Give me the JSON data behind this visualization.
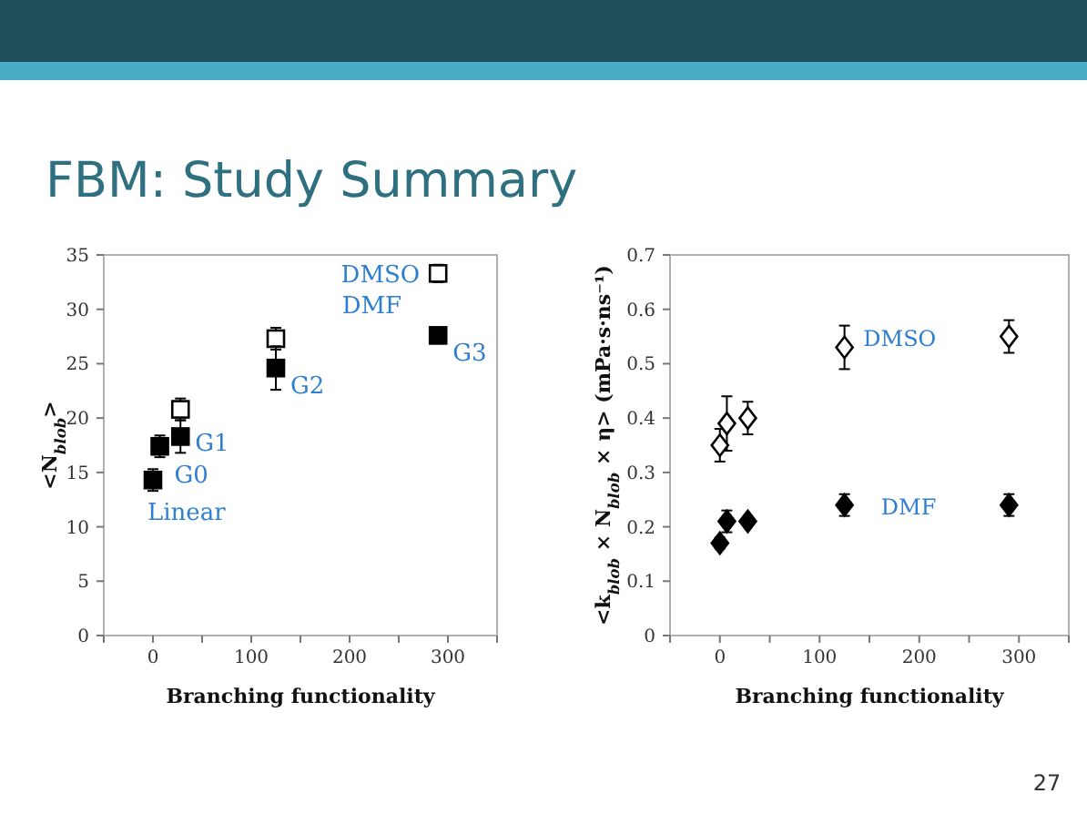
{
  "chart_data": [
    {
      "type": "scatter",
      "title": "FBM: Study Summary",
      "xlabel": "Branching functionality",
      "ylabel": "<N$_{blob}$>",
      "xlim": [
        -50,
        350
      ],
      "xticks": [
        {
          "value": -50,
          "label": null
        },
        0,
        {
          "value": 50,
          "label": null
        },
        100,
        {
          "value": 150,
          "label": null
        },
        200,
        {
          "value": 250,
          "label": null
        },
        300,
        {
          "value": 350,
          "label": null
        }
      ],
      "ylim": [
        0,
        35
      ],
      "yticks": [
        0,
        5,
        10,
        15,
        20,
        25,
        30,
        35
      ],
      "grid": false,
      "series": [
        {
          "name": "DMSO",
          "color": "#000000",
          "marker": "square",
          "x": [
            28,
            125,
            290
          ],
          "values": [
            20.8,
            27.3,
            33.3
          ],
          "errors": [
            1,
            1,
            0.8
          ]
        },
        {
          "name": "DMF",
          "color": "#000000",
          "marker": "square",
          "x": [
            0,
            7,
            28,
            125,
            290
          ],
          "values": [
            14.3,
            17.4,
            18.3,
            24.6,
            27.6
          ],
          "errors": [
            1,
            1,
            1.5,
            2,
            0.5
          ]
        }
      ],
      "annotations": [
        {
          "text": "Linear",
          "x": 0,
          "y": 14.3
        },
        {
          "text": "G0",
          "x": 7,
          "y": 17.4
        },
        {
          "text": "G1",
          "x": 28,
          "y": 18.3
        },
        {
          "text": "G2",
          "x": 125,
          "y": 24.6
        },
        {
          "text": "G3",
          "x": 290,
          "y": 27.6
        }
      ]
    },
    {
      "type": "scatter",
      "xlabel": "Branching functionality",
      "ylabel": "<k$_{blob}$ × N$_{blob}$ × η> (mPa·s·ns⁻¹)",
      "xlim": [
        -50,
        350
      ],
      "xticks": [
        {
          "value": -50,
          "label": null
        },
        0,
        {
          "value": 50,
          "label": null
        },
        100,
        {
          "value": 150,
          "label": null
        },
        200,
        {
          "value": 250,
          "label": null
        },
        300,
        {
          "value": 350,
          "label": null
        }
      ],
      "ylim": [
        0,
        0.7
      ],
      "yticks": [
        0,
        0.1,
        0.2,
        0.3,
        0.4,
        0.5,
        0.6,
        0.7
      ],
      "grid": false,
      "series": [
        {
          "name": "DMSO",
          "color": "#000000",
          "marker": "diamond",
          "x": [
            0,
            7,
            28,
            125,
            290
          ],
          "values": [
            0.35,
            0.39,
            0.4,
            0.53,
            0.55
          ],
          "errors": [
            0.03,
            0.05,
            0.03,
            0.04,
            0.03
          ]
        },
        {
          "name": "DMF",
          "color": "#000000",
          "marker": "diamond",
          "x": [
            0,
            7,
            28,
            125,
            290
          ],
          "values": [
            0.17,
            0.21,
            0.21,
            0.24,
            0.24
          ],
          "errors": [
            0.01,
            0.02,
            0.005,
            0.02,
            0.02
          ]
        }
      ],
      "annotations": [
        "27"
      ]
    }
  ]
}
